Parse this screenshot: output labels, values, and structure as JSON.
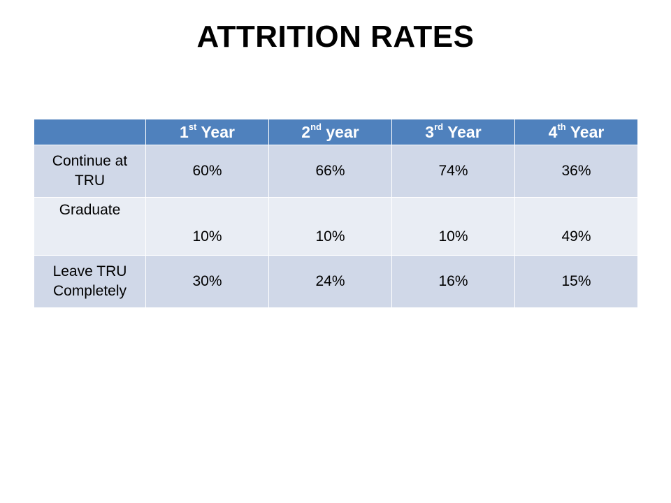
{
  "title": "ATTRITION RATES",
  "table": {
    "corner": "",
    "columns": [
      {
        "num": "1",
        "suffix": "st",
        "label": " Year"
      },
      {
        "num": "2",
        "suffix": "nd",
        "label": " year"
      },
      {
        "num": "3",
        "suffix": "rd",
        "label": " Year"
      },
      {
        "num": "4",
        "suffix": "th",
        "label": " Year"
      }
    ],
    "rows": [
      {
        "label_line1": "Continue at",
        "label_line2": "TRU",
        "values": [
          "60%",
          "66%",
          "74%",
          "36%"
        ]
      },
      {
        "label_line1": "Graduate",
        "label_line2": "",
        "values": [
          "10%",
          "10%",
          "10%",
          "49%"
        ]
      },
      {
        "label_line1": "Leave TRU",
        "label_line2": "Completely",
        "values": [
          "30%",
          "24%",
          "16%",
          "15%"
        ]
      }
    ]
  },
  "colors": {
    "header_bg": "#4f81bd",
    "row_odd_bg": "#d0d8e8",
    "row_even_bg": "#e9edf4"
  }
}
